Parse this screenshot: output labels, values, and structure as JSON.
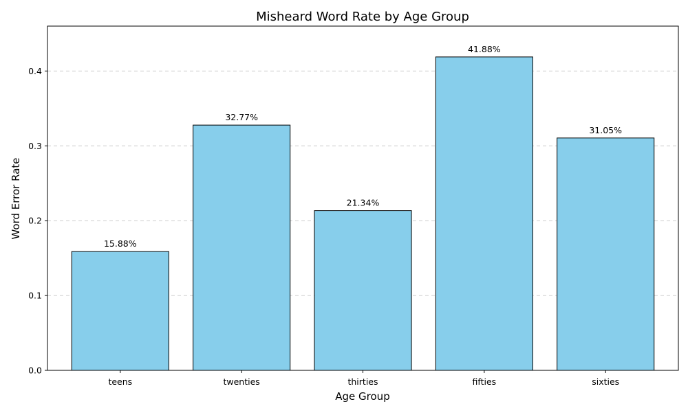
{
  "chart_data": {
    "type": "bar",
    "title": "Misheard Word Rate by Age Group",
    "xlabel": "Age Group",
    "ylabel": "Word Error Rate",
    "categories": [
      "teens",
      "twenties",
      "thirties",
      "fifties",
      "sixties"
    ],
    "values": [
      0.1588,
      0.3277,
      0.2134,
      0.4188,
      0.3105
    ],
    "data_labels": [
      "15.88%",
      "32.77%",
      "21.34%",
      "41.88%",
      "31.05%"
    ],
    "ylim": [
      0,
      0.46
    ],
    "yticks": [
      0.0,
      0.1,
      0.2,
      0.3,
      0.4
    ],
    "ytick_labels": [
      "0.0",
      "0.1",
      "0.2",
      "0.3",
      "0.4"
    ],
    "grid": "y, dashed",
    "bar_color": "#87CEEB",
    "edge_color": "#000000"
  }
}
